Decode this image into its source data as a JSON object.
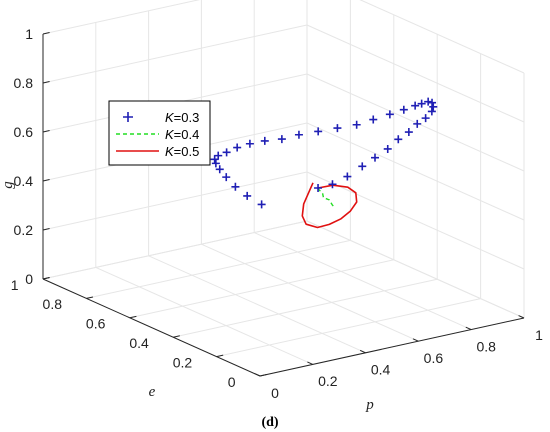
{
  "chart_data": {
    "type": "line",
    "subtype": "3d-line",
    "panel_label": "(d)",
    "axes": {
      "x": {
        "label": "p",
        "range": [
          0,
          1
        ],
        "ticks": [
          "0",
          "0.2",
          "0.4",
          "0.6",
          "0.8",
          "1"
        ]
      },
      "y": {
        "label": "e",
        "range": [
          0,
          1
        ],
        "ticks": [
          "0",
          "0.2",
          "0.4",
          "0.6",
          "0.8",
          "1"
        ]
      },
      "z": {
        "label": "g",
        "range": [
          0,
          1
        ],
        "ticks": [
          "0",
          "0.2",
          "0.4",
          "0.6",
          "0.8",
          "1"
        ]
      }
    },
    "grid": true,
    "legend": {
      "position": "upper-left",
      "entries": [
        {
          "k_symbol": "K",
          "k_value": "=0.3",
          "style": "plus-markers",
          "color": "#1f1fb4"
        },
        {
          "k_symbol": "K",
          "k_value": "=0.4",
          "style": "dashed",
          "color": "#22dd22"
        },
        {
          "k_symbol": "K",
          "k_value": "=0.5",
          "style": "solid",
          "color": "#e01010"
        }
      ]
    },
    "series": [
      {
        "k": 0.3,
        "color": "#1f1fb4",
        "points": [
          [
            0.45,
            0.28,
            0.55
          ],
          [
            0.48,
            0.25,
            0.57
          ],
          [
            0.52,
            0.23,
            0.6
          ],
          [
            0.56,
            0.21,
            0.64
          ],
          [
            0.6,
            0.2,
            0.67
          ],
          [
            0.64,
            0.19,
            0.7
          ],
          [
            0.68,
            0.19,
            0.73
          ],
          [
            0.72,
            0.19,
            0.75
          ],
          [
            0.76,
            0.2,
            0.77
          ],
          [
            0.8,
            0.21,
            0.78
          ],
          [
            0.84,
            0.23,
            0.79
          ],
          [
            0.87,
            0.26,
            0.79
          ],
          [
            0.89,
            0.29,
            0.79
          ],
          [
            0.9,
            0.32,
            0.78
          ],
          [
            0.9,
            0.35,
            0.76
          ],
          [
            0.9,
            0.38,
            0.74
          ],
          [
            0.89,
            0.42,
            0.71
          ],
          [
            0.87,
            0.46,
            0.68
          ],
          [
            0.84,
            0.5,
            0.65
          ],
          [
            0.81,
            0.54,
            0.62
          ],
          [
            0.77,
            0.58,
            0.6
          ],
          [
            0.73,
            0.62,
            0.58
          ],
          [
            0.69,
            0.66,
            0.56
          ],
          [
            0.65,
            0.69,
            0.54
          ],
          [
            0.61,
            0.72,
            0.53
          ],
          [
            0.57,
            0.74,
            0.52
          ],
          [
            0.53,
            0.75,
            0.51
          ],
          [
            0.49,
            0.75,
            0.5
          ],
          [
            0.45,
            0.74,
            0.5
          ],
          [
            0.42,
            0.72,
            0.5
          ],
          [
            0.4,
            0.69,
            0.5
          ],
          [
            0.39,
            0.66,
            0.49
          ],
          [
            0.39,
            0.63,
            0.47
          ],
          [
            0.4,
            0.6,
            0.44
          ],
          [
            0.42,
            0.57,
            0.41
          ],
          [
            0.45,
            0.54,
            0.38
          ]
        ]
      },
      {
        "k": 0.4,
        "color": "#22dd22",
        "points": [
          [
            0.45,
            0.28,
            0.55
          ],
          [
            0.47,
            0.3,
            0.53
          ],
          [
            0.5,
            0.32,
            0.5
          ],
          [
            0.52,
            0.34,
            0.47
          ],
          [
            0.55,
            0.35,
            0.45
          ],
          [
            0.57,
            0.36,
            0.42
          ],
          [
            0.59,
            0.37,
            0.4
          ]
        ]
      },
      {
        "k": 0.5,
        "color": "#e01010",
        "points": [
          [
            0.45,
            0.28,
            0.55
          ],
          [
            0.49,
            0.26,
            0.56
          ],
          [
            0.53,
            0.24,
            0.55
          ],
          [
            0.56,
            0.24,
            0.52
          ],
          [
            0.58,
            0.26,
            0.47
          ],
          [
            0.58,
            0.29,
            0.42
          ],
          [
            0.57,
            0.32,
            0.38
          ],
          [
            0.55,
            0.35,
            0.35
          ],
          [
            0.53,
            0.38,
            0.33
          ],
          [
            0.52,
            0.42,
            0.33
          ],
          [
            0.53,
            0.45,
            0.35
          ],
          [
            0.56,
            0.48,
            0.38
          ],
          [
            0.6,
            0.5,
            0.42
          ],
          [
            0.62,
            0.51,
            0.44
          ]
        ]
      }
    ]
  }
}
